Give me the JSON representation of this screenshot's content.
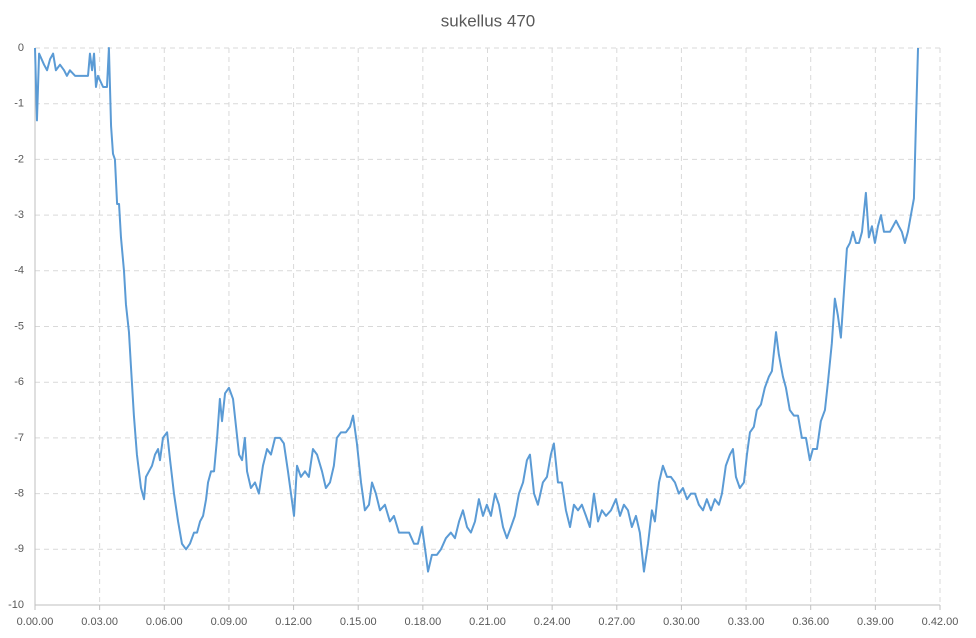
{
  "chart_data": {
    "type": "line",
    "title": "sukellus 470",
    "x": [
      0,
      0.09,
      0.19,
      0.42,
      0.56,
      0.7,
      0.84,
      0.97,
      1.16,
      1.35,
      1.48,
      1.62,
      1.86,
      2.46,
      2.55,
      2.65,
      2.74,
      2.83,
      2.92,
      3.16,
      3.34,
      3.43,
      3.53,
      3.62,
      3.71,
      3.81,
      3.9,
      3.99,
      4.13,
      4.22,
      4.36,
      4.45,
      4.59,
      4.73,
      4.92,
      5.06,
      5.15,
      5.29,
      5.43,
      5.57,
      5.71,
      5.8,
      5.94,
      6.13,
      6.27,
      6.45,
      6.64,
      6.82,
      7.01,
      7.19,
      7.38,
      7.52,
      7.66,
      7.8,
      7.94,
      8.03,
      8.17,
      8.31,
      8.45,
      8.58,
      8.68,
      8.82,
      9.0,
      9.19,
      9.33,
      9.47,
      9.61,
      9.74,
      9.84,
      10.02,
      10.21,
      10.39,
      10.58,
      10.77,
      10.95,
      11.14,
      11.37,
      11.55,
      11.74,
      11.88,
      12.02,
      12.16,
      12.34,
      12.53,
      12.71,
      12.9,
      13.09,
      13.32,
      13.5,
      13.69,
      13.87,
      14.01,
      14.2,
      14.43,
      14.62,
      14.76,
      14.94,
      15.13,
      15.31,
      15.5,
      15.64,
      15.82,
      16.01,
      16.24,
      16.47,
      16.66,
      16.89,
      17.12,
      17.36,
      17.59,
      17.77,
      17.96,
      18.14,
      18.24,
      18.42,
      18.65,
      18.84,
      19.07,
      19.3,
      19.49,
      19.68,
      19.86,
      20.05,
      20.23,
      20.42,
      20.6,
      20.79,
      20.97,
      21.16,
      21.35,
      21.53,
      21.72,
      21.9,
      22.09,
      22.27,
      22.46,
      22.65,
      22.83,
      22.97,
      23.16,
      23.34,
      23.57,
      23.76,
      23.94,
      24.08,
      24.27,
      24.45,
      24.64,
      24.83,
      25.01,
      25.2,
      25.38,
      25.57,
      25.75,
      25.94,
      26.13,
      26.31,
      26.5,
      26.73,
      26.96,
      27.15,
      27.33,
      27.52,
      27.7,
      27.89,
      28.07,
      28.26,
      28.45,
      28.63,
      28.77,
      28.96,
      29.14,
      29.33,
      29.51,
      29.7,
      29.88,
      30.07,
      30.26,
      30.44,
      30.63,
      30.81,
      31.0,
      31.18,
      31.37,
      31.55,
      31.74,
      31.88,
      32.06,
      32.25,
      32.39,
      32.53,
      32.71,
      32.9,
      33.04,
      33.18,
      33.36,
      33.5,
      33.69,
      33.87,
      34.06,
      34.2,
      34.39,
      34.52,
      34.71,
      34.85,
      35.03,
      35.22,
      35.41,
      35.59,
      35.78,
      35.96,
      36.1,
      36.29,
      36.47,
      36.66,
      36.8,
      36.98,
      37.12,
      37.26,
      37.4,
      37.54,
      37.68,
      37.82,
      37.96,
      38.1,
      38.24,
      38.38,
      38.56,
      38.7,
      38.84,
      38.98,
      39.12,
      39.26,
      39.4,
      39.54,
      39.68,
      39.82,
      39.96,
      40.09,
      40.23,
      40.37,
      40.51,
      40.65,
      40.79,
      40.88,
      40.98
    ],
    "series": [
      {
        "color": "#5b9bd5",
        "values": [
          0,
          -1.3,
          -0.1,
          -0.3,
          -0.4,
          -0.2,
          -0.1,
          -0.4,
          -0.3,
          -0.4,
          -0.5,
          -0.4,
          -0.5,
          -0.5,
          -0.1,
          -0.4,
          -0.1,
          -0.7,
          -0.5,
          -0.7,
          -0.7,
          0,
          -1.4,
          -1.9,
          -2.0,
          -2.8,
          -2.8,
          -3.4,
          -4.0,
          -4.6,
          -5.1,
          -5.7,
          -6.6,
          -7.3,
          -7.9,
          -8.1,
          -7.7,
          -7.6,
          -7.5,
          -7.3,
          -7.2,
          -7.4,
          -7.0,
          -6.9,
          -7.4,
          -8.0,
          -8.5,
          -8.9,
          -9.0,
          -8.9,
          -8.7,
          -8.7,
          -8.5,
          -8.4,
          -8.1,
          -7.8,
          -7.6,
          -7.6,
          -7.0,
          -6.3,
          -6.7,
          -6.2,
          -6.1,
          -6.3,
          -6.8,
          -7.3,
          -7.4,
          -7.0,
          -7.6,
          -7.9,
          -7.8,
          -8.0,
          -7.5,
          -7.2,
          -7.3,
          -7.0,
          -7.0,
          -7.1,
          -7.6,
          -8.0,
          -8.4,
          -7.5,
          -7.7,
          -7.6,
          -7.7,
          -7.2,
          -7.3,
          -7.6,
          -7.9,
          -7.8,
          -7.5,
          -7.0,
          -6.9,
          -6.9,
          -6.8,
          -6.6,
          -7.1,
          -7.8,
          -8.3,
          -8.2,
          -7.8,
          -8.0,
          -8.3,
          -8.2,
          -8.5,
          -8.4,
          -8.7,
          -8.7,
          -8.7,
          -8.9,
          -8.9,
          -8.6,
          -9.1,
          -9.4,
          -9.1,
          -9.1,
          -9.0,
          -8.8,
          -8.7,
          -8.8,
          -8.5,
          -8.3,
          -8.6,
          -8.7,
          -8.5,
          -8.1,
          -8.4,
          -8.2,
          -8.4,
          -8.0,
          -8.2,
          -8.6,
          -8.8,
          -8.6,
          -8.4,
          -8.0,
          -7.8,
          -7.4,
          -7.3,
          -8.0,
          -8.2,
          -7.8,
          -7.7,
          -7.3,
          -7.1,
          -7.8,
          -7.8,
          -8.3,
          -8.6,
          -8.2,
          -8.3,
          -8.2,
          -8.4,
          -8.6,
          -8.0,
          -8.5,
          -8.3,
          -8.4,
          -8.3,
          -8.1,
          -8.4,
          -8.2,
          -8.3,
          -8.6,
          -8.4,
          -8.7,
          -9.4,
          -8.9,
          -8.3,
          -8.5,
          -7.8,
          -7.5,
          -7.7,
          -7.7,
          -7.8,
          -8.0,
          -7.9,
          -8.1,
          -8.0,
          -8.0,
          -8.2,
          -8.3,
          -8.1,
          -8.3,
          -8.1,
          -8.2,
          -8.0,
          -7.5,
          -7.3,
          -7.2,
          -7.7,
          -7.9,
          -7.8,
          -7.3,
          -6.9,
          -6.8,
          -6.5,
          -6.4,
          -6.1,
          -5.9,
          -5.8,
          -5.1,
          -5.5,
          -5.9,
          -6.1,
          -6.5,
          -6.6,
          -6.6,
          -7.0,
          -7.0,
          -7.4,
          -7.2,
          -7.2,
          -6.7,
          -6.5,
          -6.0,
          -5.3,
          -4.5,
          -4.8,
          -5.2,
          -4.4,
          -3.6,
          -3.5,
          -3.3,
          -3.5,
          -3.5,
          -3.3,
          -2.6,
          -3.4,
          -3.2,
          -3.5,
          -3.2,
          -3.0,
          -3.3,
          -3.3,
          -3.3,
          -3.2,
          -3.1,
          -3.2,
          -3.3,
          -3.5,
          -3.3,
          -3.0,
          -2.7,
          -1.4,
          0
        ]
      }
    ],
    "xlim": [
      0,
      42
    ],
    "xticks": [
      {
        "value": 0,
        "label": "0.00.00"
      },
      {
        "value": 3,
        "label": "0.03.00"
      },
      {
        "value": 6,
        "label": "0.06.00"
      },
      {
        "value": 9,
        "label": "0.09.00"
      },
      {
        "value": 12,
        "label": "0.12.00"
      },
      {
        "value": 15,
        "label": "0.15.00"
      },
      {
        "value": 18,
        "label": "0.18.00"
      },
      {
        "value": 21,
        "label": "0.21.00"
      },
      {
        "value": 24,
        "label": "0.24.00"
      },
      {
        "value": 27,
        "label": "0.27.00"
      },
      {
        "value": 30,
        "label": "0.30.00"
      },
      {
        "value": 33,
        "label": "0.33.00"
      },
      {
        "value": 36,
        "label": "0.36.00"
      },
      {
        "value": 39,
        "label": "0.39.00"
      },
      {
        "value": 42,
        "label": "0.42.00"
      }
    ],
    "ylim": [
      -10,
      0
    ],
    "yticks": [
      0,
      -1,
      -2,
      -3,
      -4,
      -5,
      -6,
      -7,
      -8,
      -9,
      -10
    ],
    "grid": true
  }
}
